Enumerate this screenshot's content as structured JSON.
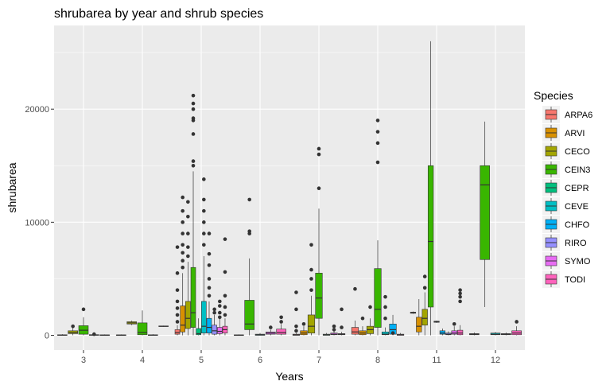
{
  "chart_data": {
    "type": "boxplot",
    "title": "shrubarea by year and shrub species",
    "xlabel": "Years",
    "ylabel": "shrubarea",
    "categories": [
      "3",
      "4",
      "5",
      "6",
      "7",
      "8",
      "11",
      "12"
    ],
    "ylim": [
      -1300,
      27400
    ],
    "yticks": [
      0,
      10000,
      20000
    ],
    "ytick_labels": [
      "0",
      "10000",
      "20000"
    ],
    "grid": true,
    "legend": {
      "title": "Species",
      "position": "right",
      "entries": [
        "ARPA6",
        "ARVI",
        "CECO",
        "CEIN3",
        "CEPR",
        "CEVE",
        "CHFO",
        "RIRO",
        "SYMO",
        "TODI"
      ]
    },
    "colors": {
      "ARPA6": "#F8766D",
      "ARVI": "#D89000",
      "CECO": "#A3A500",
      "CEIN3": "#39B600",
      "CEPR": "#00BF7D",
      "CEVE": "#00BFC4",
      "CHFO": "#00B0F6",
      "RIRO": "#9590FF",
      "SYMO": "#E76BF3",
      "TODI": "#FF62BC"
    },
    "boxes": [
      {
        "year": "3",
        "species": "ARPA6",
        "min": 0,
        "q1": 0,
        "median": 20,
        "q3": 50,
        "max": 100,
        "outliers": []
      },
      {
        "year": "3",
        "species": "CECO",
        "min": 0,
        "q1": 150,
        "median": 250,
        "q3": 400,
        "max": 700,
        "outliers": [
          800
        ]
      },
      {
        "year": "3",
        "species": "CEIN3",
        "min": 0,
        "q1": 100,
        "median": 450,
        "q3": 850,
        "max": 1600,
        "outliers": [
          2300
        ]
      },
      {
        "year": "3",
        "species": "CEPR",
        "min": 0,
        "q1": 0,
        "median": 30,
        "q3": 60,
        "max": 120,
        "outliers": [
          100
        ]
      },
      {
        "year": "3",
        "species": "SYMO",
        "min": 0,
        "q1": 0,
        "median": 20,
        "q3": 40,
        "max": 80,
        "outliers": []
      },
      {
        "year": "4",
        "species": "ARPA6",
        "min": 0,
        "q1": 0,
        "median": 20,
        "q3": 40,
        "max": 80,
        "outliers": []
      },
      {
        "year": "4",
        "species": "CECO",
        "min": 900,
        "q1": 1000,
        "median": 1100,
        "q3": 1200,
        "max": 1300,
        "outliers": []
      },
      {
        "year": "4",
        "species": "CEIN3",
        "min": 0,
        "q1": 50,
        "median": 250,
        "q3": 1100,
        "max": 2200,
        "outliers": []
      },
      {
        "year": "4",
        "species": "CHFO",
        "min": 0,
        "q1": 0,
        "median": 20,
        "q3": 50,
        "max": 100,
        "outliers": []
      },
      {
        "year": "4",
        "species": "TODI",
        "min": 750,
        "q1": 780,
        "median": 800,
        "q3": 830,
        "max": 850,
        "outliers": []
      },
      {
        "year": "5",
        "species": "ARPA6",
        "min": 0,
        "q1": 100,
        "median": 250,
        "q3": 500,
        "max": 900,
        "outliers": [
          1200,
          1800,
          2400,
          3000,
          4000,
          5500,
          7800
        ]
      },
      {
        "year": "5",
        "species": "ARVI",
        "min": 0,
        "q1": 300,
        "median": 900,
        "q3": 2600,
        "max": 5500,
        "outliers": [
          6000,
          6600,
          7300,
          8000,
          9000,
          10000,
          11000,
          12200
        ]
      },
      {
        "year": "5",
        "species": "CECO",
        "min": 0,
        "q1": 600,
        "median": 1500,
        "q3": 3000,
        "max": 6500,
        "outliers": [
          7000,
          7800,
          9000,
          10500,
          11800
        ]
      },
      {
        "year": "5",
        "species": "CEIN3",
        "min": 0,
        "q1": 700,
        "median": 2000,
        "q3": 6000,
        "max": 14500,
        "outliers": [
          15000,
          15400,
          17800,
          19000,
          19200,
          20000,
          20500,
          21200
        ]
      },
      {
        "year": "5",
        "species": "CEPR",
        "min": 0,
        "q1": 50,
        "median": 150,
        "q3": 600,
        "max": 1500,
        "outliers": []
      },
      {
        "year": "5",
        "species": "CEVE",
        "min": 0,
        "q1": 200,
        "median": 800,
        "q3": 3000,
        "max": 7000,
        "outliers": [
          8000,
          9000,
          10000,
          11000,
          12000,
          13800
        ]
      },
      {
        "year": "5",
        "species": "CHFO",
        "min": 0,
        "q1": 200,
        "median": 700,
        "q3": 1500,
        "max": 3000,
        "outliers": [
          3500,
          4200,
          5000,
          6200,
          7200,
          9000
        ]
      },
      {
        "year": "5",
        "species": "RIRO",
        "min": 0,
        "q1": 100,
        "median": 400,
        "q3": 900,
        "max": 1800,
        "outliers": [
          2000,
          2300
        ]
      },
      {
        "year": "5",
        "species": "SYMO",
        "min": 0,
        "q1": 150,
        "median": 350,
        "q3": 700,
        "max": 1500,
        "outliers": [
          1600,
          2000,
          2600,
          3000
        ]
      },
      {
        "year": "5",
        "species": "TODI",
        "min": 0,
        "q1": 200,
        "median": 500,
        "q3": 800,
        "max": 1500,
        "outliers": [
          1800,
          2500,
          3500,
          5600,
          8500
        ]
      },
      {
        "year": "6",
        "species": "ARPA6",
        "min": 0,
        "q1": 0,
        "median": 20,
        "q3": 40,
        "max": 80,
        "outliers": []
      },
      {
        "year": "6",
        "species": "CEIN3",
        "min": 0,
        "q1": 500,
        "median": 1000,
        "q3": 3100,
        "max": 6800,
        "outliers": [
          9000,
          9200,
          12000
        ]
      },
      {
        "year": "6",
        "species": "CEVE",
        "min": 0,
        "q1": 0,
        "median": 50,
        "q3": 100,
        "max": 200,
        "outliers": []
      },
      {
        "year": "6",
        "species": "SYMO",
        "min": 0,
        "q1": 100,
        "median": 200,
        "q3": 300,
        "max": 500,
        "outliers": [
          700
        ]
      },
      {
        "year": "6",
        "species": "TODI",
        "min": 0,
        "q1": 100,
        "median": 250,
        "q3": 550,
        "max": 1000,
        "outliers": [
          1200,
          1600
        ]
      },
      {
        "year": "7",
        "species": "ARPA6",
        "min": 0,
        "q1": 0,
        "median": 40,
        "q3": 100,
        "max": 200,
        "outliers": [
          400,
          800,
          2300,
          3800
        ]
      },
      {
        "year": "7",
        "species": "ARVI",
        "min": 0,
        "q1": 50,
        "median": 200,
        "q3": 400,
        "max": 800,
        "outliers": [
          1000
        ]
      },
      {
        "year": "7",
        "species": "CECO",
        "min": 0,
        "q1": 200,
        "median": 800,
        "q3": 1800,
        "max": 3500,
        "outliers": [
          4000,
          5000,
          5800,
          8000
        ]
      },
      {
        "year": "7",
        "species": "CEIN3",
        "min": 0,
        "q1": 1500,
        "median": 3300,
        "q3": 5500,
        "max": 11200,
        "outliers": [
          13000,
          16000,
          16500
        ]
      },
      {
        "year": "7",
        "species": "CEPR",
        "min": 0,
        "q1": 0,
        "median": 50,
        "q3": 100,
        "max": 200,
        "outliers": []
      },
      {
        "year": "7",
        "species": "SYMO",
        "min": 0,
        "q1": 50,
        "median": 100,
        "q3": 200,
        "max": 400,
        "outliers": [
          500,
          800
        ]
      },
      {
        "year": "7",
        "species": "TODI",
        "min": 0,
        "q1": 50,
        "median": 100,
        "q3": 150,
        "max": 300,
        "outliers": [
          700,
          2300
        ]
      },
      {
        "year": "8",
        "species": "ARPA6",
        "min": 0,
        "q1": 100,
        "median": 300,
        "q3": 700,
        "max": 1300,
        "outliers": [
          4100
        ]
      },
      {
        "year": "8",
        "species": "ARVI",
        "min": 0,
        "q1": 50,
        "median": 200,
        "q3": 400,
        "max": 800,
        "outliers": [
          1500
        ]
      },
      {
        "year": "8",
        "species": "CECO",
        "min": 0,
        "q1": 150,
        "median": 500,
        "q3": 800,
        "max": 1500,
        "outliers": [
          2500
        ]
      },
      {
        "year": "8",
        "species": "CEIN3",
        "min": 0,
        "q1": 700,
        "median": 2300,
        "q3": 5900,
        "max": 8400,
        "outliers": [
          15300,
          17000,
          18000,
          19000
        ]
      },
      {
        "year": "8",
        "species": "CEVE",
        "min": 0,
        "q1": 50,
        "median": 100,
        "q3": 300,
        "max": 700,
        "outliers": [
          1500,
          2500,
          3400
        ]
      },
      {
        "year": "8",
        "species": "CHFO",
        "min": 0,
        "q1": 100,
        "median": 500,
        "q3": 1000,
        "max": 1800,
        "outliers": [
          200
        ]
      },
      {
        "year": "8",
        "species": "TODI",
        "min": 0,
        "q1": 0,
        "median": 50,
        "q3": 100,
        "max": 200,
        "outliers": []
      },
      {
        "year": "11",
        "species": "ARPA6",
        "min": 1900,
        "q1": 1950,
        "median": 2000,
        "q3": 2050,
        "max": 2100,
        "outliers": []
      },
      {
        "year": "11",
        "species": "ARVI",
        "min": 0,
        "q1": 300,
        "median": 800,
        "q3": 1600,
        "max": 3200,
        "outliers": []
      },
      {
        "year": "11",
        "species": "CECO",
        "min": 0,
        "q1": 900,
        "median": 1500,
        "q3": 2300,
        "max": 3800,
        "outliers": [
          4200,
          5200
        ]
      },
      {
        "year": "11",
        "species": "CEIN3",
        "min": 0,
        "q1": 2500,
        "median": 8300,
        "q3": 15000,
        "max": 26000,
        "outliers": []
      },
      {
        "year": "11",
        "species": "CEVE",
        "min": 1100,
        "q1": 1150,
        "median": 1200,
        "q3": 1250,
        "max": 1300,
        "outliers": []
      },
      {
        "year": "11",
        "species": "CHFO",
        "min": 0,
        "q1": 100,
        "median": 200,
        "q3": 400,
        "max": 600,
        "outliers": []
      },
      {
        "year": "11",
        "species": "RIRO",
        "min": 0,
        "q1": 50,
        "median": 100,
        "q3": 200,
        "max": 350,
        "outliers": []
      },
      {
        "year": "11",
        "species": "SYMO",
        "min": 0,
        "q1": 100,
        "median": 200,
        "q3": 400,
        "max": 800,
        "outliers": [
          1000
        ]
      },
      {
        "year": "11",
        "species": "TODI",
        "min": 0,
        "q1": 50,
        "median": 200,
        "q3": 450,
        "max": 900,
        "outliers": [
          3000,
          3400,
          3700,
          4000
        ]
      },
      {
        "year": "12",
        "species": "ARPA6",
        "min": 0,
        "q1": 50,
        "median": 100,
        "q3": 150,
        "max": 250,
        "outliers": []
      },
      {
        "year": "12",
        "species": "CEIN3",
        "min": 2500,
        "q1": 6700,
        "median": 13300,
        "q3": 15000,
        "max": 18900,
        "outliers": []
      },
      {
        "year": "12",
        "species": "CEVE",
        "min": 0,
        "q1": 50,
        "median": 100,
        "q3": 200,
        "max": 300,
        "outliers": []
      },
      {
        "year": "12",
        "species": "SYMO",
        "min": 0,
        "q1": 50,
        "median": 100,
        "q3": 150,
        "max": 250,
        "outliers": []
      },
      {
        "year": "12",
        "species": "TODI",
        "min": 0,
        "q1": 50,
        "median": 200,
        "q3": 400,
        "max": 800,
        "outliers": [
          1200
        ]
      }
    ]
  }
}
